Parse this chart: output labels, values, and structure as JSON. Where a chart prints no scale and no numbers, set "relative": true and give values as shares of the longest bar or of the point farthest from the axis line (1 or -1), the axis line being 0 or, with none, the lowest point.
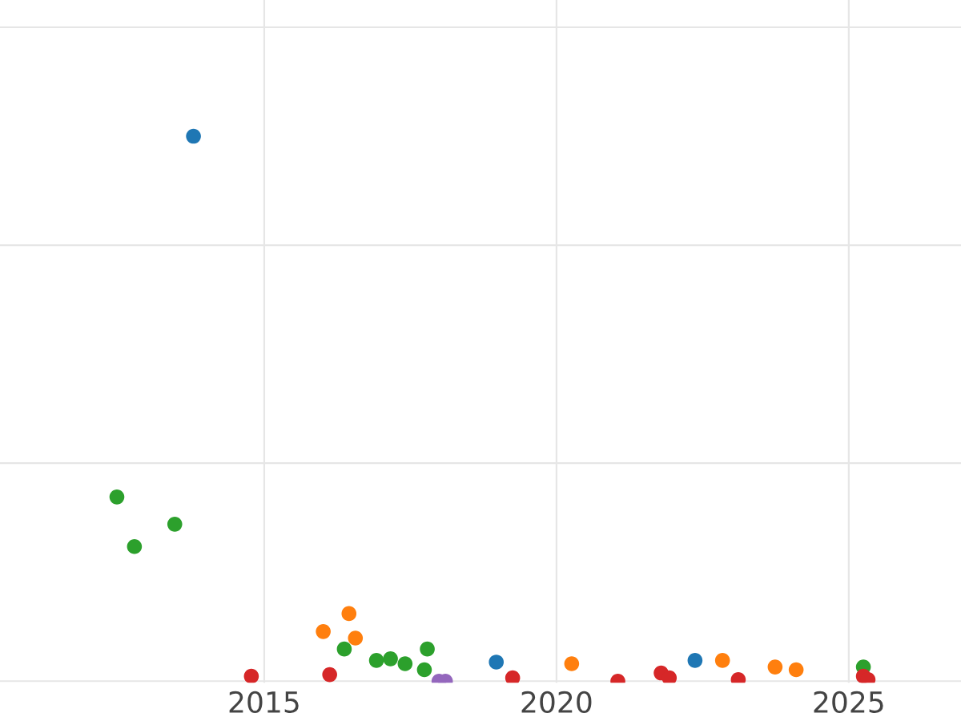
{
  "chart_data": {
    "type": "scatter",
    "relative": true,
    "grid": true,
    "marker": "circle",
    "xlim": [
      2010.48,
      2026.92
    ],
    "xticks": [
      2015,
      2020,
      2025
    ],
    "series": [
      {
        "color": "#1f77b4",
        "x": [
          2013.79,
          2018.97,
          2022.37
        ],
        "values": [
          1.0,
          0.035,
          0.038
        ]
      },
      {
        "color": "#2ca02c",
        "x": [
          2012.48,
          2012.78,
          2013.47,
          2016.37,
          2016.92,
          2017.16,
          2017.41,
          2017.79,
          2017.74,
          2025.25
        ],
        "values": [
          0.338,
          0.247,
          0.288,
          0.059,
          0.038,
          0.041,
          0.032,
          0.059,
          0.021,
          0.026
        ]
      },
      {
        "color": "#ff7f0e",
        "x": [
          2016.01,
          2016.45,
          2016.56,
          2020.26,
          2022.84,
          2023.74,
          2024.1
        ],
        "values": [
          0.091,
          0.124,
          0.079,
          0.032,
          0.038,
          0.026,
          0.021
        ]
      },
      {
        "color": "#d62728",
        "x": [
          2014.78,
          2016.12,
          2019.25,
          2021.05,
          2021.79,
          2021.93,
          2023.11,
          2025.25,
          2025.33
        ],
        "values": [
          0.009,
          0.012,
          0.006,
          0.0,
          0.015,
          0.006,
          0.003,
          0.009,
          0.003
        ]
      },
      {
        "color": "#9467bd",
        "x": [
          2017.99,
          2018.1
        ],
        "values": [
          0.0,
          0.0
        ]
      }
    ]
  }
}
